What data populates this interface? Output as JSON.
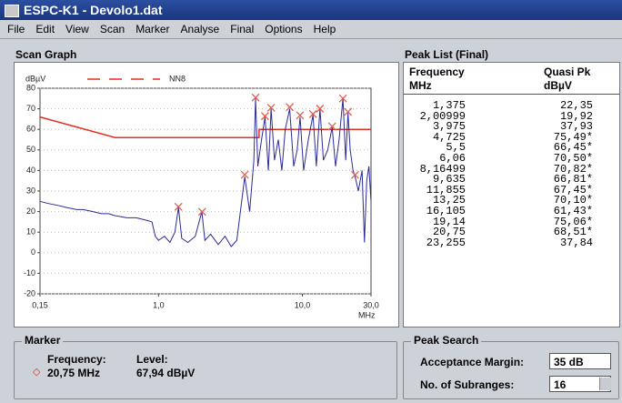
{
  "window": {
    "title": "ESPC-K1 - Devolo1.dat"
  },
  "menu": [
    "File",
    "Edit",
    "View",
    "Scan",
    "Marker",
    "Analyse",
    "Final",
    "Options",
    "Help"
  ],
  "scan_graph": {
    "label": "Scan Graph",
    "chart_data": {
      "type": "line",
      "y_unit": "dBµV",
      "x_unit": "MHz",
      "log_x": true,
      "xlim": [
        0.15,
        30
      ],
      "xticks": [
        {
          "value": 0.15,
          "label": "0,15"
        },
        {
          "value": 1,
          "label": "1,0"
        },
        {
          "value": 10,
          "label": "10,0"
        },
        {
          "value": 30,
          "label": "30,0"
        }
      ],
      "ylim": [
        -20,
        80
      ],
      "yticks": [
        -20,
        -10,
        0,
        10,
        20,
        30,
        40,
        50,
        60,
        70,
        80
      ],
      "series": [
        {
          "name": "NN8",
          "color": "#e03020",
          "x": [
            0.15,
            0.5,
            5,
            5,
            30
          ],
          "values": [
            66,
            56,
            56,
            60,
            60
          ]
        },
        {
          "color": "#2a2a9a",
          "x": [
            0.15,
            0.17,
            0.2,
            0.23,
            0.27,
            0.3,
            0.35,
            0.4,
            0.45,
            0.5,
            0.6,
            0.7,
            0.8,
            0.9,
            0.95,
            1.0,
            1.1,
            1.2,
            1.3,
            1.375,
            1.45,
            1.6,
            1.8,
            2.0,
            2.1,
            2.3,
            2.6,
            2.9,
            3.2,
            3.5,
            3.975,
            4.3,
            4.6,
            4.725,
            4.9,
            5.2,
            5.5,
            5.8,
            6.06,
            6.4,
            6.8,
            7.2,
            7.6,
            8.16,
            8.7,
            9.2,
            9.635,
            10.2,
            11,
            11.855,
            12.5,
            13.25,
            14,
            15,
            16.105,
            17,
            18,
            19.14,
            20,
            20.75,
            21.5,
            22.5,
            23.255,
            24.5,
            26,
            27,
            28,
            29,
            30
          ],
          "values": [
            25,
            24,
            23,
            22,
            21,
            21,
            20,
            19,
            19,
            18,
            17,
            17,
            16,
            15,
            8,
            6,
            8,
            5,
            10,
            22,
            7,
            5,
            8,
            20,
            6,
            9,
            4,
            8,
            3,
            6,
            37,
            20,
            45,
            75,
            42,
            55,
            66,
            40,
            70,
            45,
            55,
            40,
            60,
            70,
            42,
            50,
            66,
            40,
            55,
            67,
            42,
            70,
            45,
            50,
            61,
            42,
            55,
            75,
            45,
            68,
            50,
            40,
            37,
            30,
            40,
            5,
            35,
            42,
            25
          ]
        }
      ],
      "peaks": {
        "color": "#e06050",
        "x": [
          1.375,
          2.00999,
          3.975,
          4.725,
          5.5,
          6.06,
          8.16499,
          9.635,
          11.855,
          13.25,
          16.105,
          19.14,
          20.75,
          23.255
        ],
        "values": [
          22.35,
          19.92,
          37.93,
          75.49,
          66.45,
          70.5,
          70.82,
          66.81,
          67.45,
          70.1,
          61.43,
          75.06,
          68.51,
          37.84
        ]
      }
    }
  },
  "peak_list": {
    "title": "Peak List (Final)",
    "columns": [
      [
        "Frequency",
        "MHz"
      ],
      [
        "Quasi Pk",
        "dBµV"
      ]
    ],
    "rows": [
      [
        "1,375",
        "22,35"
      ],
      [
        "2,00999",
        "19,92"
      ],
      [
        "3,975",
        "37,93"
      ],
      [
        "4,725",
        "75,49*"
      ],
      [
        "5,5",
        "66,45*"
      ],
      [
        "6,06",
        "70,50*"
      ],
      [
        "8,16499",
        "70,82*"
      ],
      [
        "9,635",
        "66,81*"
      ],
      [
        "11,855",
        "67,45*"
      ],
      [
        "13,25",
        "70,10*"
      ],
      [
        "16,105",
        "61,43*"
      ],
      [
        "19,14",
        "75,06*"
      ],
      [
        "20,75",
        "68,51*"
      ],
      [
        "23,255",
        "37,84"
      ]
    ]
  },
  "marker": {
    "title": "Marker",
    "frequency_label": "Frequency:",
    "frequency": "20,75 MHz",
    "level_label": "Level:",
    "level": "67,94 dBµV"
  },
  "peak_search": {
    "title": "Peak Search",
    "margin_label": "Acceptance Margin:",
    "margin": "35 dB",
    "subranges_label": "No. of Subranges:",
    "subranges": "16"
  }
}
